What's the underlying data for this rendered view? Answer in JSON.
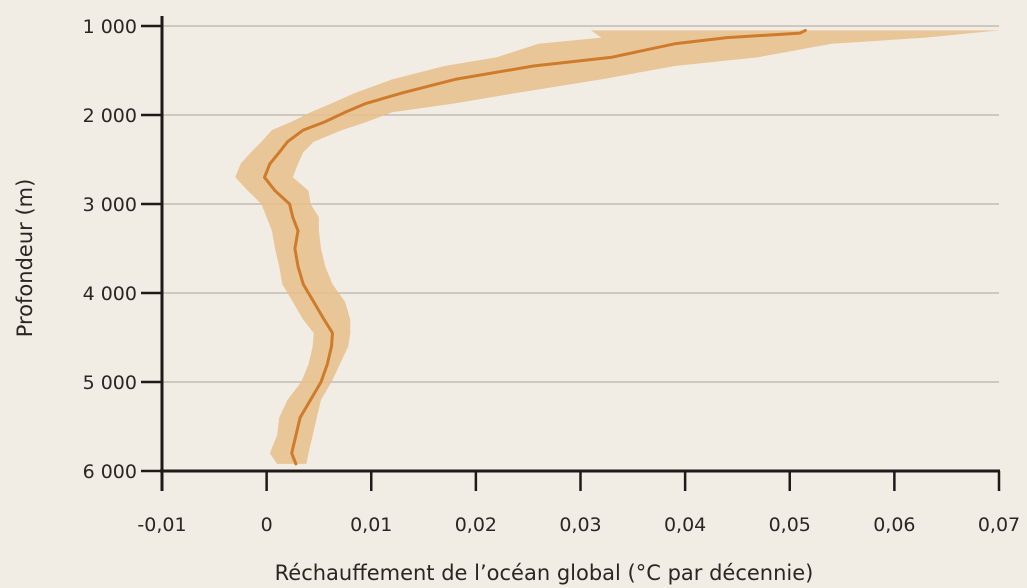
{
  "chart_data": {
    "type": "line",
    "title": "",
    "xlabel": "Réchauffement de l’océan global (°C par décennie)",
    "ylabel": "Profondeur (m)",
    "xlim": [
      -0.01,
      0.07
    ],
    "ylim": [
      1000,
      6000
    ],
    "y_inverted": true,
    "x_ticks": [
      -0.01,
      0,
      0.01,
      0.02,
      0.03,
      0.04,
      0.05,
      0.06,
      0.07
    ],
    "x_tick_labels": [
      "-0,01",
      "0",
      "0,01",
      "0,02",
      "0,03",
      "0,04",
      "0,05",
      "0,06",
      "0,07"
    ],
    "y_ticks": [
      1000,
      2000,
      3000,
      4000,
      5000,
      6000
    ],
    "y_tick_labels": [
      "1 000",
      "2 000",
      "3 000",
      "4 000",
      "5 000",
      "6 000"
    ],
    "grid": "horizontal",
    "colors": {
      "background": "#f1ece4",
      "line": "#cf7b2c",
      "band": "#e8bf8a",
      "grid": "#a9a49c",
      "axis": "#1f1a17"
    },
    "series": [
      {
        "type": "line",
        "points": [
          {
            "x": 0.0515,
            "y": 1050
          },
          {
            "x": 0.051,
            "y": 1080
          },
          {
            "x": 0.044,
            "y": 1130
          },
          {
            "x": 0.039,
            "y": 1200
          },
          {
            "x": 0.033,
            "y": 1350
          },
          {
            "x": 0.0255,
            "y": 1450
          },
          {
            "x": 0.018,
            "y": 1600
          },
          {
            "x": 0.013,
            "y": 1750
          },
          {
            "x": 0.0095,
            "y": 1870
          },
          {
            "x": 0.0075,
            "y": 1970
          },
          {
            "x": 0.0055,
            "y": 2080
          },
          {
            "x": 0.0035,
            "y": 2170
          },
          {
            "x": 0.002,
            "y": 2300
          },
          {
            "x": 0.0012,
            "y": 2420
          },
          {
            "x": 0.0003,
            "y": 2550
          },
          {
            "x": -0.0002,
            "y": 2700
          },
          {
            "x": 0.0008,
            "y": 2850
          },
          {
            "x": 0.0022,
            "y": 3000
          },
          {
            "x": 0.0025,
            "y": 3150
          },
          {
            "x": 0.003,
            "y": 3300
          },
          {
            "x": 0.0027,
            "y": 3500
          },
          {
            "x": 0.003,
            "y": 3700
          },
          {
            "x": 0.0035,
            "y": 3900
          },
          {
            "x": 0.0045,
            "y": 4100
          },
          {
            "x": 0.0055,
            "y": 4300
          },
          {
            "x": 0.0063,
            "y": 4450
          },
          {
            "x": 0.0062,
            "y": 4600
          },
          {
            "x": 0.0058,
            "y": 4800
          },
          {
            "x": 0.0052,
            "y": 5000
          },
          {
            "x": 0.0042,
            "y": 5200
          },
          {
            "x": 0.0032,
            "y": 5400
          },
          {
            "x": 0.0028,
            "y": 5600
          },
          {
            "x": 0.0024,
            "y": 5800
          },
          {
            "x": 0.0028,
            "y": 5920
          }
        ]
      },
      {
        "type": "range",
        "low": [
          0.031,
          0.032,
          0.026,
          0.022,
          0.017,
          0.012,
          0.0085,
          0.0062,
          0.0042,
          0.0023,
          0.0005,
          -0.0005,
          -0.0015,
          -0.0025,
          -0.003,
          -0.0018,
          -0.0005,
          0.0,
          0.0005,
          0.0008,
          0.0012,
          0.0015,
          0.0025,
          0.0035,
          0.0045,
          0.0044,
          0.004,
          0.0033,
          0.002,
          0.0012,
          0.001,
          0.0003,
          0.001
        ],
        "high": [
          0.07,
          0.063,
          0.054,
          0.047,
          0.039,
          0.032,
          0.024,
          0.018,
          0.012,
          0.0095,
          0.0072,
          0.0045,
          0.0035,
          0.003,
          0.0025,
          0.004,
          0.0042,
          0.005,
          0.005,
          0.0052,
          0.0056,
          0.0063,
          0.0075,
          0.008,
          0.008,
          0.0078,
          0.007,
          0.0062,
          0.0052,
          0.0048,
          0.0044,
          0.004,
          0.0038
        ],
        "y": [
          1050,
          1130,
          1200,
          1350,
          1450,
          1600,
          1750,
          1870,
          1970,
          2080,
          2170,
          2300,
          2420,
          2550,
          2700,
          2850,
          3000,
          3150,
          3300,
          3500,
          3700,
          3900,
          4100,
          4300,
          4450,
          4600,
          4800,
          5000,
          5200,
          5400,
          5600,
          5800,
          5920
        ]
      }
    ]
  }
}
